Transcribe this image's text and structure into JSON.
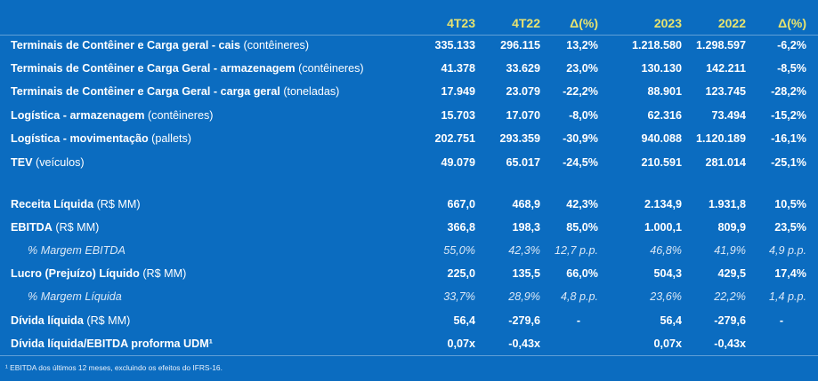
{
  "header": {
    "c1": "4T23",
    "c2": "4T22",
    "c3": "Δ(%)",
    "c4": "2023",
    "c5": "2022",
    "c6": "Δ(%)"
  },
  "rows": [
    {
      "label": "Terminais de Contêiner e Carga geral - cais",
      "unit": "(contêineres)",
      "v": [
        "335.133",
        "296.115",
        "13,2%",
        "1.218.580",
        "1.298.597",
        "-6,2%"
      ]
    },
    {
      "label": "Terminais de Contêiner e Carga Geral - armazenagem",
      "unit": "(contêineres)",
      "v": [
        "41.378",
        "33.629",
        "23,0%",
        "130.130",
        "142.211",
        "-8,5%"
      ]
    },
    {
      "label": "Terminais de Contêiner e Carga Geral - carga geral",
      "unit": "(toneladas)",
      "v": [
        "17.949",
        "23.079",
        "-22,2%",
        "88.901",
        "123.745",
        "-28,2%"
      ]
    },
    {
      "label": "Logística - armazenagem",
      "unit": "(contêineres)",
      "v": [
        "15.703",
        "17.070",
        "-8,0%",
        "62.316",
        "73.494",
        "-15,2%"
      ]
    },
    {
      "label": "Logística - movimentação",
      "unit": "(pallets)",
      "v": [
        "202.751",
        "293.359",
        "-30,9%",
        "940.088",
        "1.120.189",
        "-16,1%"
      ]
    },
    {
      "label": "TEV",
      "unit": "(veículos)",
      "v": [
        "49.079",
        "65.017",
        "-24,5%",
        "210.591",
        "281.014",
        "-25,1%"
      ]
    },
    {
      "label": "Receita Líquida",
      "unit": "(R$ MM)",
      "v": [
        "667,0",
        "468,9",
        "42,3%",
        "2.134,9",
        "1.931,8",
        "10,5%"
      ]
    },
    {
      "label": "EBITDA",
      "unit": "(R$ MM)",
      "v": [
        "366,8",
        "198,3",
        "85,0%",
        "1.000,1",
        "809,9",
        "23,5%"
      ]
    },
    {
      "label": "% Margem EBITDA",
      "unit": "",
      "v": [
        "55,0%",
        "42,3%",
        "12,7 p.p.",
        "46,8%",
        "41,9%",
        "4,9 p.p."
      ]
    },
    {
      "label": "Lucro (Prejuízo) Líquido",
      "unit": "(R$ MM)",
      "v": [
        "225,0",
        "135,5",
        "66,0%",
        "504,3",
        "429,5",
        "17,4%"
      ]
    },
    {
      "label": "% Margem Líquida",
      "unit": "",
      "v": [
        "33,7%",
        "28,9%",
        "4,8 p.p.",
        "23,6%",
        "22,2%",
        "1,4 p.p."
      ]
    },
    {
      "label": "Dívida líquida",
      "unit": "(R$ MM)",
      "v": [
        "56,4",
        "-279,6",
        "-",
        "56,4",
        "-279,6",
        "-"
      ]
    },
    {
      "label": "Dívida líquida/EBITDA proforma UDM¹",
      "unit": "",
      "v": [
        "0,07x",
        "-0,43x",
        "",
        "0,07x",
        "-0,43x",
        ""
      ]
    }
  ],
  "footnote": "¹ EBITDA dos últimos 12 meses, excluindo os efeitos do IFRS-16."
}
